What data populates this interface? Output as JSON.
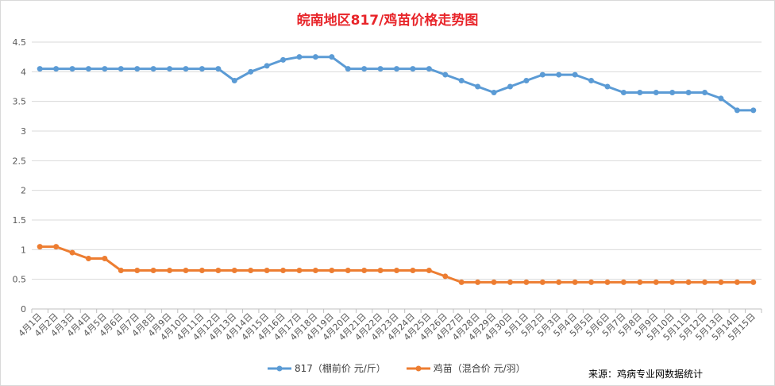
{
  "chart_data": {
    "type": "line",
    "title": "皖南地区817/鸡苗价格走势图",
    "categories": [
      "4月1日",
      "4月2日",
      "4月3日",
      "4月4日",
      "4月5日",
      "4月6日",
      "4月7日",
      "4月8日",
      "4月9日",
      "4月10日",
      "4月11日",
      "4月12日",
      "4月13日",
      "4月14日",
      "4月15日",
      "4月16日",
      "4月17日",
      "4月18日",
      "4月19日",
      "4月20日",
      "4月21日",
      "4月22日",
      "4月23日",
      "4月24日",
      "4月25日",
      "4月26日",
      "4月27日",
      "4月28日",
      "4月29日",
      "4月30日",
      "5月1日",
      "5月2日",
      "5月3日",
      "5月4日",
      "5月5日",
      "5月6日",
      "5月7日",
      "5月8日",
      "5月9日",
      "5月10日",
      "5月11日",
      "5月12日",
      "5月13日",
      "5月14日",
      "5月15日"
    ],
    "series": [
      {
        "name": "817（棚前价 元/斤）",
        "color": "#5b9bd5",
        "values": [
          4.05,
          4.05,
          4.05,
          4.05,
          4.05,
          4.05,
          4.05,
          4.05,
          4.05,
          4.05,
          4.05,
          4.05,
          3.85,
          4.0,
          4.1,
          4.2,
          4.25,
          4.25,
          4.25,
          4.05,
          4.05,
          4.05,
          4.05,
          4.05,
          4.05,
          3.95,
          3.85,
          3.75,
          3.65,
          3.75,
          3.85,
          3.95,
          3.95,
          3.95,
          3.85,
          3.75,
          3.65,
          3.65,
          3.65,
          3.65,
          3.65,
          3.65,
          3.55,
          3.35,
          3.35
        ]
      },
      {
        "name": "鸡苗（混合价 元/羽）",
        "color": "#ed7d31",
        "values": [
          1.05,
          1.05,
          0.95,
          0.85,
          0.85,
          0.65,
          0.65,
          0.65,
          0.65,
          0.65,
          0.65,
          0.65,
          0.65,
          0.65,
          0.65,
          0.65,
          0.65,
          0.65,
          0.65,
          0.65,
          0.65,
          0.65,
          0.65,
          0.65,
          0.65,
          0.55,
          0.45,
          0.45,
          0.45,
          0.45,
          0.45,
          0.45,
          0.45,
          0.45,
          0.45,
          0.45,
          0.45,
          0.45,
          0.45,
          0.45,
          0.45,
          0.45,
          0.45,
          0.45,
          0.45
        ]
      }
    ],
    "yticks": [
      "0",
      "0.5",
      "1",
      "1.5",
      "2",
      "2.5",
      "3",
      "3.5",
      "4",
      "4.5"
    ],
    "ylim": [
      0,
      4.5
    ],
    "grid": true,
    "legend_position": "bottom"
  },
  "source_note": "来源：鸡病专业网数据统计"
}
